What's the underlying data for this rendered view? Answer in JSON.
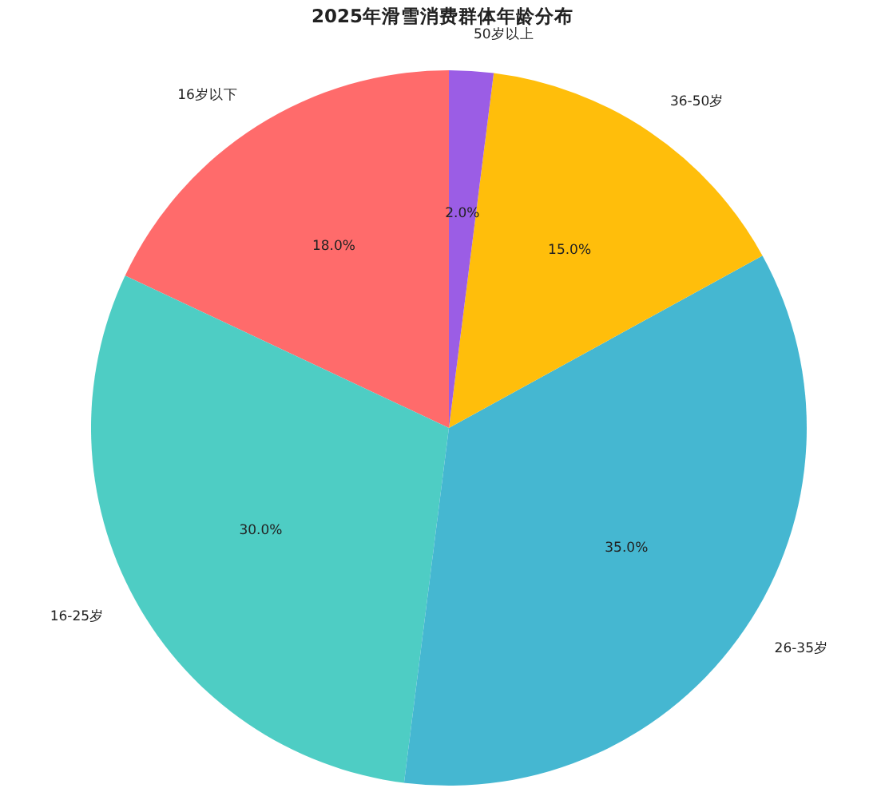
{
  "chart_data": {
    "type": "pie",
    "title": "2025年滑雪消费群体年龄分布",
    "categories": [
      "16岁以下",
      "16-25岁",
      "26-35岁",
      "36-50岁",
      "50岁以上"
    ],
    "values": [
      18,
      30,
      35,
      15,
      2
    ],
    "colors": [
      "#ff6b6b",
      "#4ecdc4",
      "#45b7d1",
      "#ffbe0b",
      "#9b5de5"
    ],
    "value_labels": [
      "18.0%",
      "30.0%",
      "35.0%",
      "15.0%",
      "2.0%"
    ]
  }
}
